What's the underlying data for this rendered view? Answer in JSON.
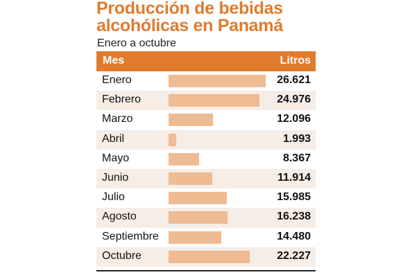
{
  "title_line1": "Producción de bebidas",
  "title_line2": "alcohólicas en Panamá",
  "subtitle": "Enero a octubre",
  "header": {
    "col1": "Mes",
    "col2": "Litros"
  },
  "colors": {
    "accent": "#e07b2e",
    "bar": "#efbb92",
    "alt_row": "#f5ede6"
  },
  "chart_data": {
    "type": "bar",
    "categories": [
      "Enero",
      "Febrero",
      "Marzo",
      "Abril",
      "Mayo",
      "Junio",
      "Julio",
      "Agosto",
      "Septiembre",
      "Octubre"
    ],
    "values": [
      26621,
      24976,
      12096,
      1993,
      8367,
      11914,
      15985,
      16238,
      14480,
      22227
    ],
    "value_labels": [
      "26.621",
      "24.976",
      "12.096",
      "1.993",
      "8.367",
      "11.914",
      "15.985",
      "16.238",
      "14.480",
      "22.227"
    ],
    "orientation": "horizontal",
    "title": "Producción de bebidas alcohólicas en Panamá",
    "subtitle": "Enero a octubre",
    "xlabel": "Litros",
    "ylabel": "Mes"
  }
}
